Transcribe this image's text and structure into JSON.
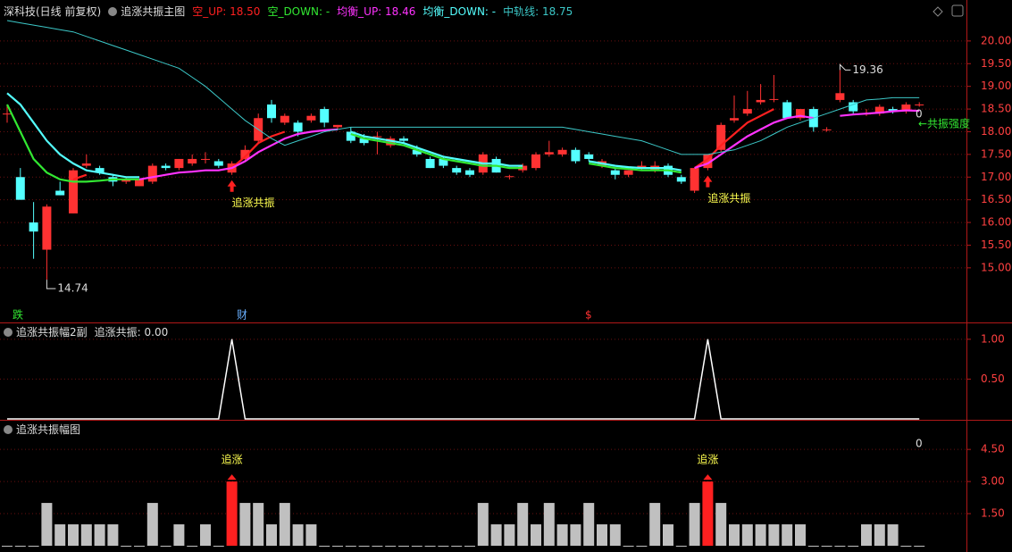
{
  "chart_data": [
    {
      "type": "candlestick",
      "title": "深科技(日线 前复权)",
      "indicator": "追涨共振主图",
      "up_color": "#ff3232",
      "down_color": "#54ffff",
      "open": [
        18.4,
        17.0,
        16.0,
        15.4,
        16.7,
        16.2,
        17.25,
        17.2,
        17.0,
        16.9,
        16.8,
        16.9,
        17.25,
        17.2,
        17.3,
        17.4,
        17.35,
        17.1,
        17.4,
        17.8,
        18.6,
        18.2,
        18.2,
        18.25,
        18.5,
        18.1,
        18.0,
        17.85,
        17.9,
        17.7,
        17.85,
        17.6,
        17.4,
        17.4,
        17.2,
        17.15,
        17.1,
        17.4,
        17.0,
        17.15,
        17.2,
        17.5,
        17.5,
        17.6,
        17.5,
        17.25,
        17.15,
        17.05,
        17.2,
        17.15,
        17.25,
        17.0,
        16.7,
        17.2,
        17.6,
        18.25,
        18.4,
        18.65,
        18.7,
        18.65,
        18.3,
        18.5,
        18.05,
        18.7,
        18.65,
        18.4,
        18.4,
        18.5,
        18.45,
        18.6
      ],
      "high": [
        18.6,
        17.2,
        16.45,
        16.4,
        16.9,
        17.2,
        17.5,
        17.25,
        17.05,
        17.0,
        16.95,
        17.3,
        17.3,
        17.4,
        17.5,
        17.55,
        17.4,
        17.35,
        17.7,
        18.4,
        18.7,
        18.4,
        18.25,
        18.4,
        18.55,
        18.15,
        18.1,
        17.95,
        18.0,
        17.9,
        17.9,
        17.7,
        17.45,
        17.45,
        17.25,
        17.2,
        17.55,
        17.45,
        17.05,
        17.3,
        17.55,
        17.8,
        17.65,
        17.65,
        17.55,
        17.4,
        17.2,
        17.15,
        17.35,
        17.35,
        17.3,
        17.05,
        17.2,
        17.5,
        18.2,
        18.8,
        18.9,
        19.05,
        19.25,
        18.7,
        18.5,
        18.55,
        18.1,
        19.36,
        18.7,
        18.5,
        18.6,
        18.55,
        18.65,
        18.65
      ],
      "low": [
        18.2,
        16.5,
        15.2,
        14.74,
        16.6,
        16.2,
        17.2,
        17.05,
        16.8,
        16.85,
        16.8,
        16.85,
        17.15,
        17.15,
        17.25,
        17.3,
        17.2,
        17.05,
        17.35,
        17.75,
        18.2,
        18.15,
        17.9,
        18.2,
        18.1,
        18.05,
        17.75,
        17.7,
        17.5,
        17.65,
        17.75,
        17.45,
        17.2,
        17.2,
        17.05,
        17.0,
        17.05,
        17.1,
        16.95,
        17.1,
        17.15,
        17.45,
        17.45,
        17.3,
        17.35,
        17.2,
        16.95,
        17.0,
        17.15,
        17.1,
        17.0,
        16.85,
        16.65,
        17.15,
        17.55,
        18.2,
        18.35,
        18.6,
        18.65,
        18.3,
        18.25,
        18.0,
        18.0,
        18.65,
        18.4,
        18.35,
        18.35,
        18.4,
        18.4,
        18.55
      ],
      "close": [
        18.4,
        16.5,
        15.8,
        16.35,
        16.6,
        17.15,
        17.3,
        17.1,
        16.9,
        16.95,
        16.95,
        17.25,
        17.2,
        17.4,
        17.4,
        17.4,
        17.25,
        17.3,
        17.6,
        18.3,
        18.3,
        18.35,
        18.0,
        18.35,
        18.2,
        18.15,
        17.8,
        17.75,
        17.9,
        17.85,
        17.8,
        17.5,
        17.2,
        17.25,
        17.1,
        17.05,
        17.5,
        17.1,
        17.02,
        17.25,
        17.5,
        17.55,
        17.6,
        17.35,
        17.4,
        17.35,
        17.05,
        17.15,
        17.25,
        17.25,
        17.05,
        16.9,
        17.2,
        17.5,
        18.15,
        18.3,
        18.5,
        18.7,
        18.72,
        18.3,
        18.5,
        18.1,
        18.05,
        18.85,
        18.45,
        18.4,
        18.55,
        18.45,
        18.6,
        18.6
      ],
      "series": [
        {
          "label": "空_UP: 18.50",
          "color": "#ff2020",
          "values": [
            null,
            null,
            null,
            null,
            null,
            16.95,
            17.05,
            null,
            null,
            null,
            null,
            null,
            null,
            null,
            null,
            null,
            null,
            17.2,
            17.45,
            17.75,
            17.9,
            18.0,
            null,
            null,
            null,
            null,
            null,
            null,
            null,
            null,
            null,
            null,
            null,
            null,
            null,
            null,
            null,
            null,
            null,
            null,
            null,
            null,
            null,
            null,
            null,
            null,
            null,
            null,
            null,
            null,
            null,
            null,
            17.2,
            17.4,
            17.7,
            17.95,
            18.2,
            18.35,
            18.5,
            null,
            null,
            null,
            null,
            null,
            null,
            null,
            null,
            null,
            null,
            null
          ]
        },
        {
          "label": "空_DOWN: -",
          "color": "#32e832",
          "values": [
            18.6,
            18.0,
            17.4,
            17.1,
            16.95,
            16.9,
            16.9,
            16.92,
            16.95,
            16.95,
            16.95,
            null,
            null,
            null,
            null,
            null,
            null,
            null,
            null,
            null,
            null,
            null,
            null,
            null,
            null,
            null,
            17.95,
            17.85,
            17.8,
            17.75,
            17.7,
            17.6,
            17.5,
            17.4,
            17.35,
            17.3,
            17.25,
            17.25,
            17.2,
            17.2,
            null,
            null,
            null,
            null,
            17.3,
            17.25,
            17.2,
            17.18,
            17.15,
            17.15,
            17.15,
            17.1,
            null,
            null,
            null,
            null,
            null,
            null,
            null,
            null,
            null,
            null,
            null,
            null,
            null,
            null,
            null,
            null,
            null,
            null
          ]
        },
        {
          "label": "均衡_UP: 18.46",
          "color": "#ff32ff",
          "values": [
            null,
            null,
            null,
            null,
            null,
            null,
            null,
            null,
            null,
            null,
            16.95,
            17.0,
            17.05,
            17.1,
            17.12,
            17.15,
            17.15,
            17.2,
            17.35,
            17.55,
            17.7,
            17.85,
            17.95,
            18.0,
            18.03,
            18.05,
            null,
            null,
            null,
            null,
            null,
            null,
            null,
            null,
            null,
            null,
            null,
            null,
            null,
            null,
            null,
            null,
            null,
            null,
            null,
            null,
            null,
            null,
            null,
            null,
            null,
            null,
            17.2,
            17.3,
            17.5,
            17.7,
            17.9,
            18.05,
            18.2,
            18.3,
            18.35,
            18.3,
            null,
            18.35,
            18.38,
            18.4,
            18.42,
            18.45,
            18.47,
            18.46
          ]
        },
        {
          "label": "均衡_DOWN: -",
          "color": "#54ffff",
          "values": [
            18.85,
            18.6,
            18.2,
            17.8,
            17.5,
            17.3,
            17.15,
            17.1,
            17.05,
            17.0,
            17.0,
            null,
            null,
            null,
            null,
            null,
            null,
            null,
            null,
            null,
            null,
            null,
            null,
            null,
            null,
            null,
            18.0,
            17.9,
            17.85,
            17.8,
            17.75,
            17.65,
            17.55,
            17.45,
            17.4,
            17.35,
            17.3,
            17.3,
            17.25,
            17.25,
            null,
            null,
            null,
            null,
            17.35,
            17.3,
            17.25,
            17.22,
            17.2,
            17.2,
            17.2,
            17.15,
            null,
            null,
            null,
            null,
            null,
            null,
            null,
            null,
            null,
            null,
            null,
            null,
            null,
            null,
            null,
            null,
            null,
            null
          ]
        },
        {
          "label": "中轨线: 18.75",
          "color": "#3cc8c8",
          "thin": true,
          "values": [
            20.45,
            20.4,
            20.35,
            20.3,
            20.25,
            20.2,
            20.1,
            20.0,
            19.9,
            19.8,
            19.7,
            19.6,
            19.5,
            19.4,
            19.2,
            19.0,
            18.75,
            18.5,
            18.25,
            18.05,
            17.85,
            17.7,
            17.8,
            17.9,
            18.0,
            18.05,
            18.1,
            18.1,
            18.1,
            18.1,
            18.1,
            18.1,
            18.1,
            18.1,
            18.1,
            18.1,
            18.1,
            18.1,
            18.1,
            18.1,
            18.1,
            18.1,
            18.1,
            18.05,
            18.0,
            17.95,
            17.9,
            17.85,
            17.8,
            17.7,
            17.6,
            17.5,
            17.5,
            17.5,
            17.55,
            17.6,
            17.7,
            17.8,
            17.95,
            18.1,
            18.2,
            18.3,
            18.4,
            18.5,
            18.6,
            18.7,
            18.72,
            18.75,
            18.75,
            18.75
          ]
        }
      ],
      "signal_label": "追涨共振",
      "markers": [
        "跌",
        "财",
        "$"
      ],
      "side_label": "←共振强度",
      "side_value": 0,
      "ylim": [
        14.21,
        20.47
      ],
      "yticks": [
        {
          "value": 15,
          "label": "15.00"
        },
        {
          "value": 15.5,
          "label": "15.50"
        },
        {
          "value": 16,
          "label": "16.00"
        },
        {
          "value": 16.5,
          "label": "16.50"
        },
        {
          "value": 17,
          "label": "17.00"
        },
        {
          "value": 17.5,
          "label": "17.50"
        },
        {
          "value": 18,
          "label": "18.00"
        },
        {
          "value": 18.5,
          "label": "18.50"
        },
        {
          "value": 19,
          "label": "19.00"
        },
        {
          "value": 19.5,
          "label": "19.50"
        },
        {
          "value": 20,
          "label": "20.00"
        }
      ],
      "grid": true
    },
    {
      "type": "line",
      "title": "追涨共振幅2副",
      "legend": "追涨共振: 0.00",
      "color": "#ffffff",
      "values": [
        0,
        0,
        0,
        0,
        0,
        0,
        0,
        0,
        0,
        0,
        0,
        0,
        0,
        0,
        0,
        0,
        0,
        1,
        0,
        0,
        0,
        0,
        0,
        0,
        0,
        0,
        0,
        0,
        0,
        0,
        0,
        0,
        0,
        0,
        0,
        0,
        0,
        0,
        0,
        0,
        0,
        0,
        0,
        0,
        0,
        0,
        0,
        0,
        0,
        0,
        0,
        0,
        0,
        1,
        0,
        0,
        0,
        0,
        0,
        0,
        0,
        0,
        0,
        0,
        0,
        0,
        0,
        0,
        0,
        0
      ],
      "ylim": [
        0,
        1.2
      ],
      "yticks": [
        {
          "value": 0.5,
          "label": "0.50"
        },
        {
          "value": 1,
          "label": "1.00"
        }
      ],
      "grid": true
    },
    {
      "type": "bar",
      "title": "追涨共振幅图",
      "color": "#c0c0c0",
      "highlight_color": "#ff2020",
      "signal_label": "追涨",
      "side_value": 0,
      "values": [
        0,
        0,
        0,
        2,
        1,
        1,
        1,
        1,
        1,
        0,
        0,
        2,
        0,
        1,
        0,
        1,
        0,
        3,
        2,
        2,
        1,
        2,
        1,
        1,
        0,
        0,
        0,
        0,
        0,
        0,
        0,
        0,
        0,
        0,
        0,
        0,
        2,
        1,
        1,
        2,
        1,
        2,
        1,
        1,
        2,
        1,
        1,
        0,
        0,
        2,
        1,
        0,
        2,
        3,
        2,
        1,
        1,
        1,
        1,
        1,
        1,
        0,
        0,
        0,
        0,
        1,
        1,
        1,
        0,
        0
      ],
      "ylim": [
        0,
        5.8
      ],
      "yticks": [
        {
          "value": 1.5,
          "label": "1.50"
        },
        {
          "value": 3,
          "label": "3.00"
        },
        {
          "value": 4.5,
          "label": "4.50"
        }
      ],
      "grid": true
    }
  ]
}
